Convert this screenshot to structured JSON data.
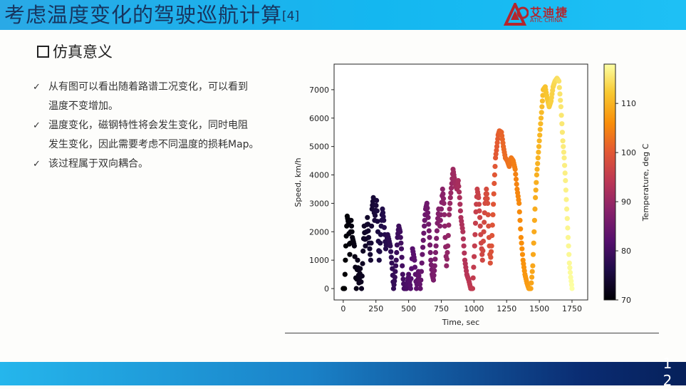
{
  "header": {
    "title": "考虑温度变化的驾驶巡航计算",
    "citation": "[4]",
    "logo_cn": "艾迪捷",
    "logo_en": "ATIC CHINA"
  },
  "section": {
    "title": "仿真意义"
  },
  "bullets": [
    {
      "line1": "从有图可以看出随着路谱工况变化，可以看到",
      "line2": "温度不变增加。"
    },
    {
      "line1": "温度变化，磁钢特性将会发生变化，同时电阻",
      "line2": "发生变化，因此需要考虑不同温度的损耗Map。"
    },
    {
      "line1": "该过程属于双向耦合。",
      "line2": ""
    }
  ],
  "footer": {
    "page_number": "1 2"
  },
  "colors": {
    "top_bar": "#1EB4EE",
    "title_text": "#17355F",
    "logo_red": "#B3262D",
    "bottom_bar_end": "#06205A"
  },
  "chart_data": {
    "type": "scatter",
    "xlabel": "Time, sec",
    "ylabel": "Speed, km/h",
    "colorbar_label": "Temperature, deg C",
    "colormap": "inferno",
    "xlim": [
      -70,
      1870
    ],
    "ylim": [
      -400,
      7900
    ],
    "xticks": [
      0,
      250,
      500,
      750,
      1000,
      1250,
      1500,
      1750
    ],
    "yticks": [
      0,
      1000,
      2000,
      3000,
      4000,
      5000,
      6000,
      7000
    ],
    "clim": [
      70,
      118
    ],
    "cticks": [
      70,
      80,
      90,
      100,
      110
    ],
    "speed_profile": [
      [
        0,
        0
      ],
      [
        10,
        0
      ],
      [
        20,
        1500
      ],
      [
        30,
        2550
      ],
      [
        40,
        2300
      ],
      [
        50,
        1200
      ],
      [
        60,
        2400
      ],
      [
        70,
        1800
      ],
      [
        85,
        1500
      ],
      [
        100,
        0
      ],
      [
        110,
        1000
      ],
      [
        120,
        200
      ],
      [
        130,
        700
      ],
      [
        140,
        0
      ],
      [
        160,
        2200
      ],
      [
        170,
        1500
      ],
      [
        185,
        2500
      ],
      [
        195,
        1800
      ],
      [
        210,
        1000
      ],
      [
        220,
        2800
      ],
      [
        230,
        3200
      ],
      [
        240,
        2400
      ],
      [
        255,
        3100
      ],
      [
        265,
        2000
      ],
      [
        275,
        1000
      ],
      [
        290,
        2200
      ],
      [
        300,
        2800
      ],
      [
        310,
        2400
      ],
      [
        325,
        1400
      ],
      [
        340,
        1900
      ],
      [
        360,
        1500
      ],
      [
        375,
        700
      ],
      [
        385,
        0
      ],
      [
        395,
        400
      ],
      [
        405,
        1000
      ],
      [
        415,
        1800
      ],
      [
        425,
        2200
      ],
      [
        435,
        2000
      ],
      [
        445,
        1400
      ],
      [
        455,
        500
      ],
      [
        465,
        0
      ],
      [
        485,
        0
      ],
      [
        500,
        500
      ],
      [
        515,
        0
      ],
      [
        530,
        1400
      ],
      [
        545,
        1000
      ],
      [
        560,
        0
      ],
      [
        575,
        600
      ],
      [
        590,
        0
      ],
      [
        605,
        1200
      ],
      [
        620,
        2200
      ],
      [
        630,
        2800
      ],
      [
        640,
        3000
      ],
      [
        650,
        2500
      ],
      [
        660,
        1800
      ],
      [
        670,
        1000
      ],
      [
        680,
        500
      ],
      [
        690,
        300
      ],
      [
        700,
        800
      ],
      [
        710,
        1500
      ],
      [
        720,
        2300
      ],
      [
        730,
        2800
      ],
      [
        740,
        2200
      ],
      [
        750,
        2800
      ],
      [
        760,
        3500
      ],
      [
        770,
        3000
      ],
      [
        780,
        1800
      ],
      [
        790,
        800
      ],
      [
        800,
        1500
      ],
      [
        810,
        2600
      ],
      [
        820,
        3200
      ],
      [
        830,
        3700
      ],
      [
        840,
        4200
      ],
      [
        850,
        3900
      ],
      [
        860,
        3600
      ],
      [
        870,
        3500
      ],
      [
        880,
        3800
      ],
      [
        890,
        3200
      ],
      [
        900,
        2500
      ],
      [
        915,
        2000
      ],
      [
        930,
        1000
      ],
      [
        945,
        500
      ],
      [
        960,
        300
      ],
      [
        975,
        0
      ],
      [
        990,
        0
      ],
      [
        1005,
        1500
      ],
      [
        1015,
        2700
      ],
      [
        1025,
        3500
      ],
      [
        1035,
        3200
      ],
      [
        1045,
        2500
      ],
      [
        1055,
        1600
      ],
      [
        1065,
        1000
      ],
      [
        1075,
        2000
      ],
      [
        1085,
        3000
      ],
      [
        1095,
        3500
      ],
      [
        1105,
        3000
      ],
      [
        1115,
        1800
      ],
      [
        1125,
        900
      ],
      [
        1135,
        1500
      ],
      [
        1145,
        2600
      ],
      [
        1155,
        3700
      ],
      [
        1165,
        4600
      ],
      [
        1175,
        5000
      ],
      [
        1185,
        5400
      ],
      [
        1195,
        5550
      ],
      [
        1210,
        5500
      ],
      [
        1225,
        5000
      ],
      [
        1240,
        4600
      ],
      [
        1255,
        4500
      ],
      [
        1270,
        4300
      ],
      [
        1285,
        4600
      ],
      [
        1300,
        4500
      ],
      [
        1315,
        4200
      ],
      [
        1330,
        3500
      ],
      [
        1345,
        3000
      ],
      [
        1360,
        1800
      ],
      [
        1375,
        1000
      ],
      [
        1390,
        500
      ],
      [
        1405,
        200
      ],
      [
        1420,
        0
      ],
      [
        1435,
        0
      ],
      [
        1450,
        800
      ],
      [
        1460,
        2000
      ],
      [
        1470,
        3200
      ],
      [
        1480,
        4000
      ],
      [
        1490,
        4600
      ],
      [
        1500,
        5200
      ],
      [
        1510,
        5800
      ],
      [
        1520,
        6400
      ],
      [
        1530,
        7000
      ],
      [
        1545,
        7100
      ],
      [
        1560,
        6700
      ],
      [
        1575,
        6400
      ],
      [
        1590,
        6600
      ],
      [
        1605,
        7100
      ],
      [
        1620,
        7300
      ],
      [
        1635,
        7400
      ],
      [
        1650,
        7300
      ],
      [
        1665,
        6400
      ],
      [
        1680,
        5200
      ],
      [
        1690,
        4600
      ],
      [
        1700,
        3800
      ],
      [
        1710,
        2800
      ],
      [
        1720,
        1800
      ],
      [
        1730,
        900
      ],
      [
        1740,
        400
      ],
      [
        1750,
        0
      ]
    ]
  }
}
